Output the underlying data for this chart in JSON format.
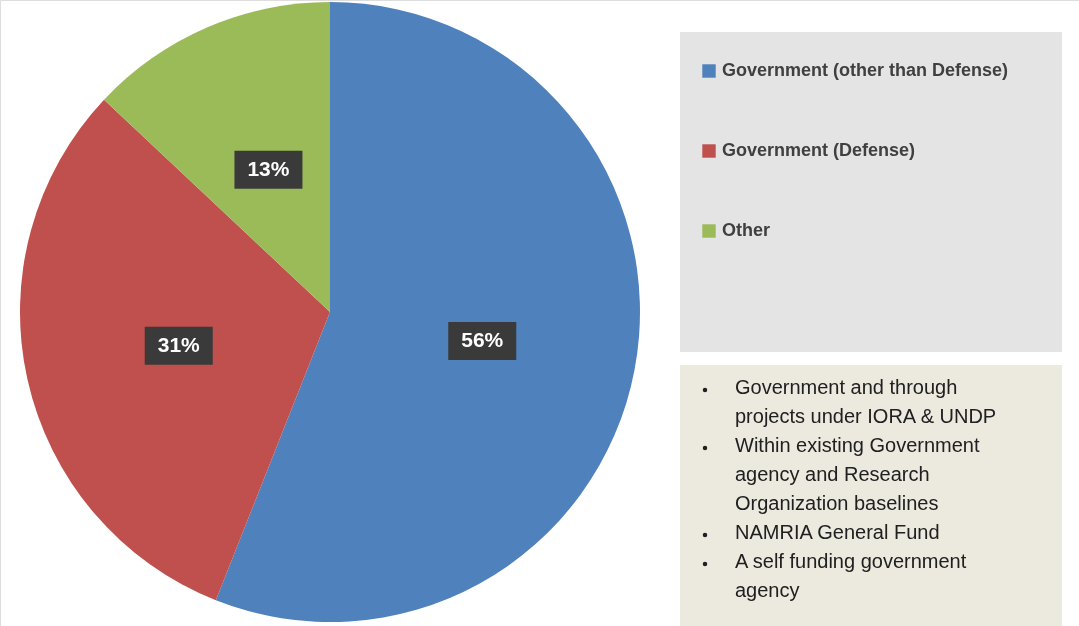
{
  "chart_data": {
    "type": "pie",
    "categories": [
      "Government (other than Defense)",
      "Government (Defense)",
      "Other"
    ],
    "values": [
      56,
      31,
      13
    ],
    "colors": [
      "#4f81bd",
      "#c0504d",
      "#9bbb59"
    ],
    "value_labels": [
      "56%",
      "31%",
      "13%"
    ],
    "legend": "right",
    "annotations": [
      "Government and through projects under IORA &  UNDP",
      "Within existing Government agency  and Research Organization  baselines",
      "NAMRIA General Fund",
      "A self funding government agency"
    ]
  }
}
